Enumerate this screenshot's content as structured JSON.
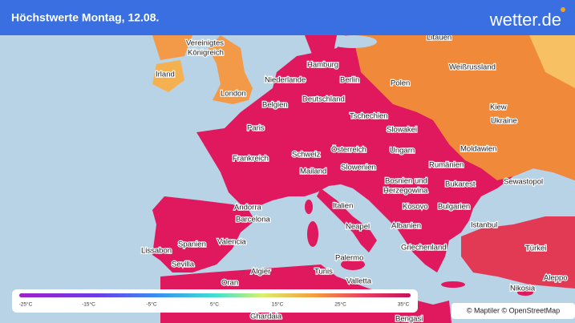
{
  "header": {
    "title": "Höchstwerte Montag, 12.08.",
    "logo": "wetter.de"
  },
  "places": [
    "Litauen",
    "Vereinigtes",
    "Königreich",
    "Hamburg",
    "Weißrussland",
    "Irland",
    "Niederlande",
    "Berlin",
    "Polen",
    "London",
    "Deutschland",
    "Belgien",
    "Kiew",
    "Tschechien",
    "Ukraine",
    "Paris",
    "Slowakei",
    "Österreich",
    "Ungarn",
    "Moldawien",
    "Schweiz",
    "Frankreich",
    "Slowenien",
    "Rumänien",
    "Mailand",
    "Sewastopol",
    "Bosnien und",
    "Herzegowina",
    "Bukarest",
    "Andorra",
    "Italien",
    "Kosovo",
    "Bulgarien",
    "Barcelona",
    "Istanbul",
    "Neapel",
    "Albanien",
    "Valencia",
    "Spanien",
    "Griechenland",
    "Türkei",
    "Lissabon",
    "Sevilla",
    "Palermo",
    "Algier",
    "Tunis",
    "Aleppo",
    "Valletta",
    "Oran",
    "Nikosia",
    "Ghardaia",
    "Bengasi"
  ],
  "legend": {
    "ticks": [
      {
        "value": -25,
        "label": "-25°C"
      },
      {
        "value": -15,
        "label": "-15°C"
      },
      {
        "value": -5,
        "label": "-5°C"
      },
      {
        "value": 5,
        "label": "5°C"
      },
      {
        "value": 15,
        "label": "15°C"
      },
      {
        "value": 25,
        "label": "25°C"
      },
      {
        "value": 35,
        "label": "35°C"
      }
    ]
  },
  "attribution": "© Maptiler © OpenStreetMap"
}
